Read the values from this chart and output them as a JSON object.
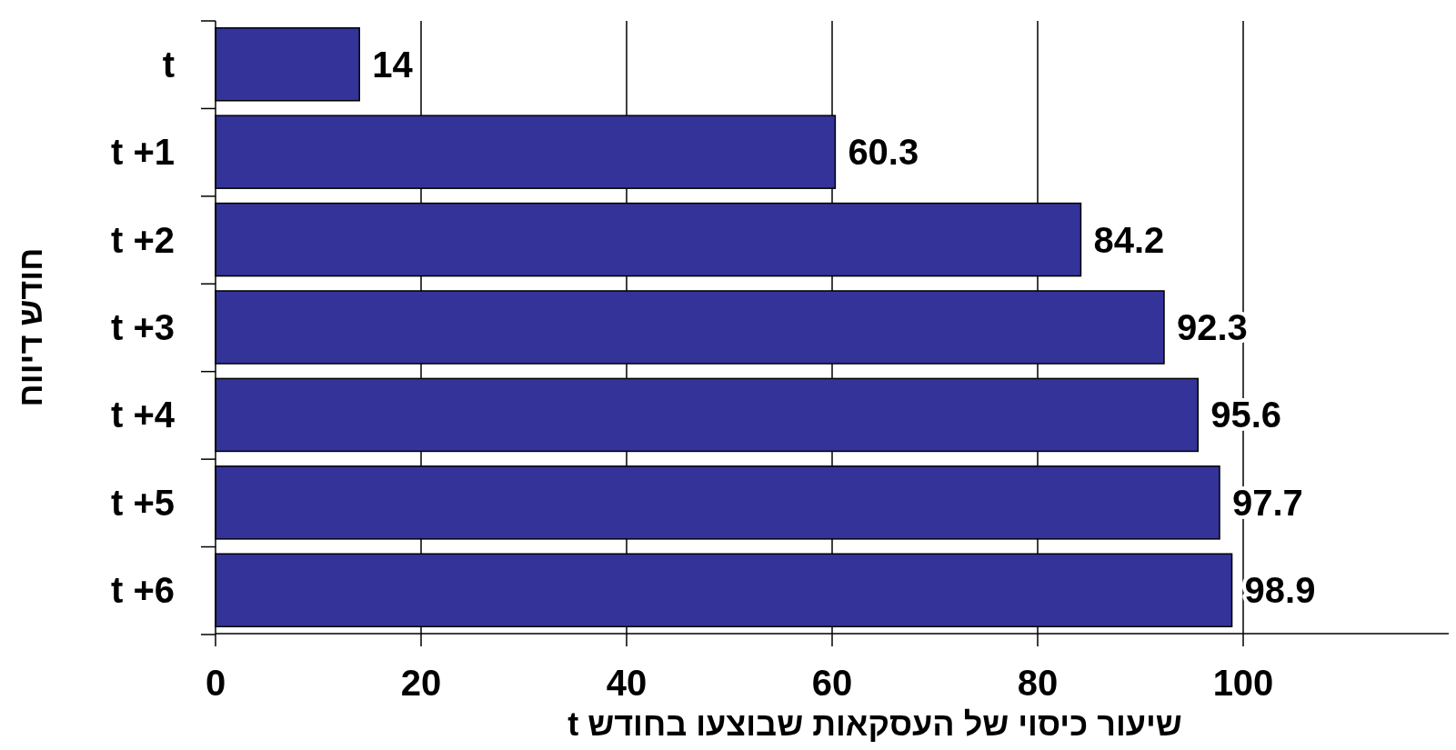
{
  "chart_data": {
    "type": "bar",
    "orientation": "horizontal",
    "xlabel": "שיעור כיסוי של העסקאות שבוצעו בחודש t",
    "ylabel": "חודש דיווח",
    "categories": [
      "t",
      "t +1",
      "t +2",
      "t +3",
      "t +4",
      "t +5",
      "t +6"
    ],
    "values": [
      14,
      60.3,
      84.2,
      92.3,
      95.6,
      97.7,
      98.9
    ],
    "color": "#333399",
    "xlim": [
      0,
      120
    ],
    "xticks": [
      0,
      20,
      40,
      60,
      80,
      100
    ],
    "grid": "x",
    "data_labels": true
  }
}
